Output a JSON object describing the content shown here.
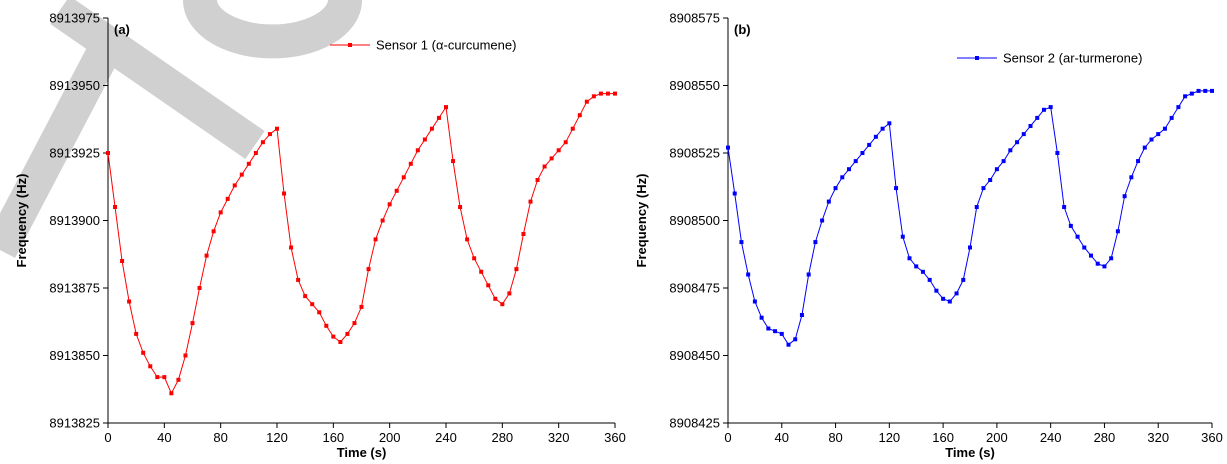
{
  "chart_data": [
    {
      "type": "line",
      "panel_label": "(a)",
      "xlabel": "Time (s)",
      "ylabel": "Frequency (Hz)",
      "legend": "upper right",
      "x": [
        0,
        5,
        10,
        15,
        20,
        25,
        30,
        35,
        40,
        45,
        50,
        55,
        60,
        65,
        70,
        75,
        80,
        85,
        90,
        95,
        100,
        105,
        110,
        115,
        120,
        125,
        130,
        135,
        140,
        145,
        150,
        155,
        160,
        165,
        170,
        175,
        180,
        185,
        190,
        195,
        200,
        205,
        210,
        215,
        220,
        225,
        230,
        235,
        240,
        245,
        250,
        255,
        260,
        265,
        270,
        275,
        280,
        285,
        290,
        295,
        300,
        305,
        310,
        315,
        320,
        325,
        330,
        335,
        340,
        345,
        350,
        355,
        360
      ],
      "series": [
        {
          "name": "Sensor 1 (α-curcumene)",
          "color": "#ff0000",
          "values": [
            8913925,
            8913905,
            8913885,
            8913870,
            8913858,
            8913851,
            8913846,
            8913842,
            8913842,
            8913836,
            8913841,
            8913850,
            8913862,
            8913875,
            8913887,
            8913896,
            8913903,
            8913908,
            8913913,
            8913917,
            8913921,
            8913925,
            8913929,
            8913932,
            8913934,
            8913910,
            8913890,
            8913878,
            8913872,
            8913869,
            8913866,
            8913861,
            8913857,
            8913855,
            8913858,
            8913862,
            8913868,
            8913882,
            8913893,
            8913900,
            8913906,
            8913911,
            8913916,
            8913921,
            8913926,
            8913930,
            8913934,
            8913938,
            8913942,
            8913922,
            8913905,
            8913893,
            8913886,
            8913881,
            8913876,
            8913871,
            8913869,
            8913873,
            8913882,
            8913895,
            8913907,
            8913915,
            8913920,
            8913923,
            8913926,
            8913929,
            8913934,
            8913939,
            8913944,
            8913946,
            8913947,
            8913947,
            8913947
          ]
        }
      ],
      "xlim": [
        0,
        360
      ],
      "xticks": [
        0,
        40,
        80,
        120,
        160,
        200,
        240,
        280,
        320,
        360
      ],
      "ylim": [
        8913825,
        8913975
      ],
      "yticks": [
        8913825,
        8913850,
        8913875,
        8913900,
        8913925,
        8913950,
        8913975
      ]
    },
    {
      "type": "line",
      "panel_label": "(b)",
      "xlabel": "Time (s)",
      "ylabel": "Frequency (Hz)",
      "legend": "upper right",
      "x": [
        0,
        5,
        10,
        15,
        20,
        25,
        30,
        35,
        40,
        45,
        50,
        55,
        60,
        65,
        70,
        75,
        80,
        85,
        90,
        95,
        100,
        105,
        110,
        115,
        120,
        125,
        130,
        135,
        140,
        145,
        150,
        155,
        160,
        165,
        170,
        175,
        180,
        185,
        190,
        195,
        200,
        205,
        210,
        215,
        220,
        225,
        230,
        235,
        240,
        245,
        250,
        255,
        260,
        265,
        270,
        275,
        280,
        285,
        290,
        295,
        300,
        305,
        310,
        315,
        320,
        325,
        330,
        335,
        340,
        345,
        350,
        355,
        360
      ],
      "series": [
        {
          "name": "Sensor 2 (ar-turmerone)",
          "color": "#0000ff",
          "values": [
            8908527,
            8908510,
            8908492,
            8908480,
            8908470,
            8908464,
            8908460,
            8908459,
            8908458,
            8908454,
            8908456,
            8908465,
            8908480,
            8908492,
            8908500,
            8908507,
            8908512,
            8908516,
            8908519,
            8908522,
            8908525,
            8908528,
            8908531,
            8908534,
            8908536,
            8908512,
            8908494,
            8908486,
            8908483,
            8908481,
            8908478,
            8908474,
            8908471,
            8908470,
            8908473,
            8908478,
            8908490,
            8908505,
            8908512,
            8908515,
            8908519,
            8908522,
            8908526,
            8908529,
            8908532,
            8908535,
            8908538,
            8908541,
            8908542,
            8908525,
            8908505,
            8908498,
            8908494,
            8908490,
            8908487,
            8908484,
            8908483,
            8908486,
            8908496,
            8908509,
            8908516,
            8908522,
            8908527,
            8908530,
            8908532,
            8908534,
            8908538,
            8908542,
            8908546,
            8908547,
            8908548,
            8908548,
            8908548
          ]
        }
      ],
      "xlim": [
        0,
        360
      ],
      "xticks": [
        0,
        40,
        80,
        120,
        160,
        200,
        240,
        280,
        320,
        360
      ],
      "ylim": [
        8908425,
        8908575
      ],
      "yticks": [
        8908425,
        8908450,
        8908475,
        8908500,
        8908525,
        8908550,
        8908575
      ]
    }
  ]
}
